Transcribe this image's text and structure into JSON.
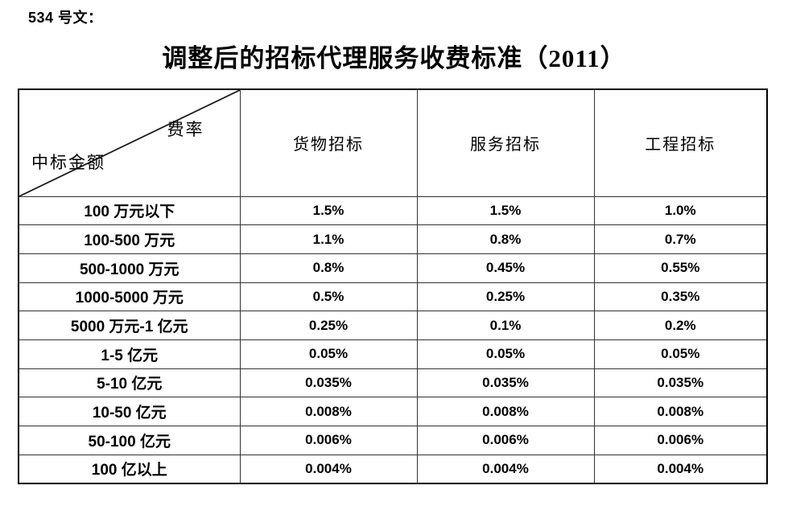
{
  "page": {
    "doc_ref": "534 号文：",
    "title": "调整后的招标代理服务收费标准（2011）"
  },
  "table": {
    "corner": {
      "top_right": "费率",
      "bottom_left": "中标金额"
    },
    "columns": [
      "货物招标",
      "服务招标",
      "工程招标"
    ],
    "rows": [
      {
        "label": "100 万元以下",
        "values": [
          "1.5%",
          "1.5%",
          "1.0%"
        ]
      },
      {
        "label": "100-500 万元",
        "values": [
          "1.1%",
          "0.8%",
          "0.7%"
        ]
      },
      {
        "label": "500-1000 万元",
        "values": [
          "0.8%",
          "0.45%",
          "0.55%"
        ]
      },
      {
        "label": "1000-5000 万元",
        "values": [
          "0.5%",
          "0.25%",
          "0.35%"
        ]
      },
      {
        "label": "5000 万元-1 亿元",
        "values": [
          "0.25%",
          "0.1%",
          "0.2%"
        ]
      },
      {
        "label": "1-5 亿元",
        "values": [
          "0.05%",
          "0.05%",
          "0.05%"
        ]
      },
      {
        "label": "5-10 亿元",
        "values": [
          "0.035%",
          "0.035%",
          "0.035%"
        ]
      },
      {
        "label": "10-50 亿元",
        "values": [
          "0.008%",
          "0.008%",
          "0.008%"
        ]
      },
      {
        "label": "50-100 亿元",
        "values": [
          "0.006%",
          "0.006%",
          "0.006%"
        ]
      },
      {
        "label": "100 亿以上",
        "values": [
          "0.004%",
          "0.004%",
          "0.004%"
        ]
      }
    ],
    "colors": {
      "border_outer": "#000000",
      "border_inner": "#333333",
      "text": "#000000",
      "background": "#ffffff"
    }
  }
}
